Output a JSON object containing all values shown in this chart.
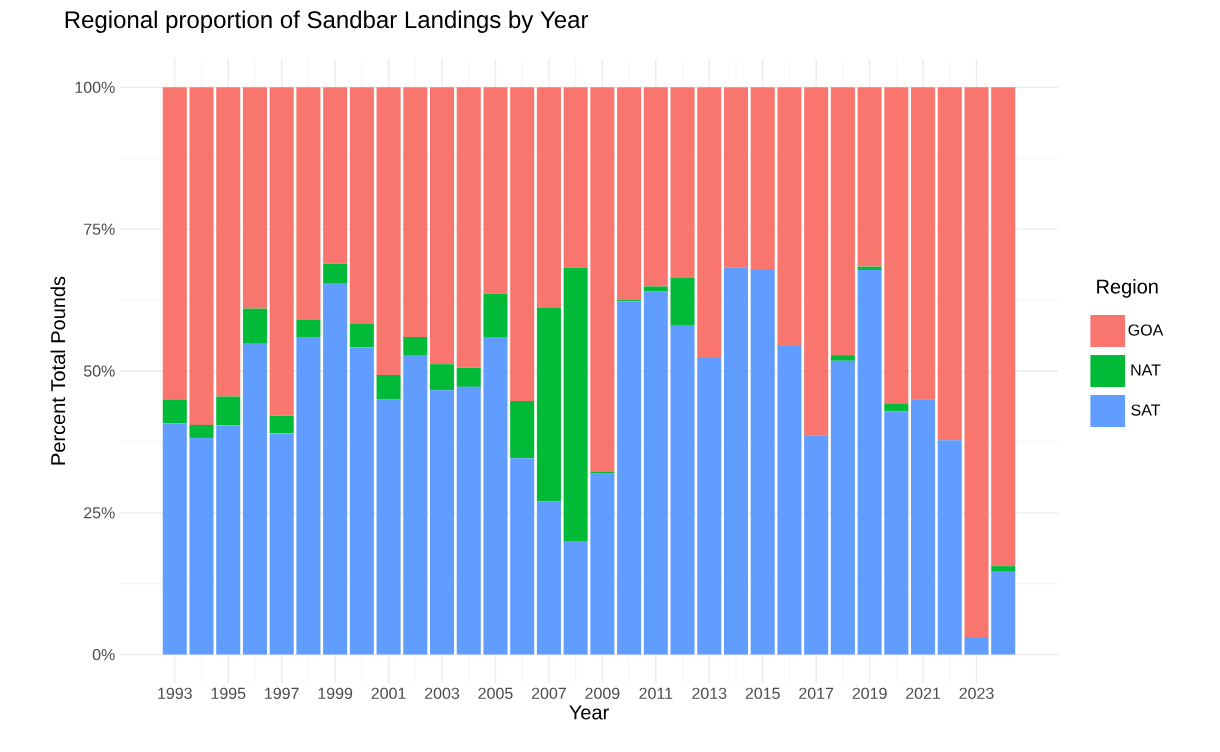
{
  "chart_data": {
    "type": "bar",
    "stacked": true,
    "title": "Regional proportion of Sandbar Landings by Year",
    "xlabel": "Year",
    "ylabel": "Percent Total Pounds",
    "legend_title": "Region",
    "legend": "right",
    "grid": true,
    "x": [
      1993,
      1994,
      1995,
      1996,
      1997,
      1998,
      1999,
      2000,
      2001,
      2002,
      2003,
      2004,
      2005,
      2006,
      2007,
      2008,
      2009,
      2010,
      2011,
      2012,
      2013,
      2014,
      2015,
      2016,
      2017,
      2018,
      2019,
      2020,
      2021,
      2022,
      2023,
      2024
    ],
    "xlim": [
      1990.95,
      2026.05
    ],
    "xticks": [
      1993,
      1995,
      1997,
      1999,
      2001,
      2003,
      2005,
      2007,
      2009,
      2011,
      2013,
      2015,
      2017,
      2019,
      2021,
      2023
    ],
    "ylim": [
      -5,
      105
    ],
    "yticks": [
      {
        "value": 0,
        "label": "0%"
      },
      {
        "value": 25,
        "label": "25%"
      },
      {
        "value": 50,
        "label": "50%"
      },
      {
        "value": 75,
        "label": "75%"
      },
      {
        "value": 100,
        "label": "100%"
      }
    ],
    "series": [
      {
        "name": "SAT",
        "color": "#619cff",
        "values": [
          40.8,
          38.2,
          40.4,
          54.8,
          39.0,
          56.0,
          65.5,
          54.2,
          45.0,
          52.8,
          46.6,
          47.2,
          56.0,
          34.6,
          27.0,
          19.9,
          31.9,
          62.3,
          64.0,
          58.1,
          52.3,
          68.3,
          67.8,
          54.4,
          38.6,
          51.8,
          67.8,
          42.9,
          44.9,
          37.8,
          3.1,
          14.6
        ]
      },
      {
        "name": "NAT",
        "color": "#00ba38",
        "values": [
          4.1,
          2.3,
          5.1,
          6.2,
          3.1,
          3.0,
          3.4,
          4.2,
          4.3,
          3.2,
          4.6,
          3.4,
          7.6,
          10.1,
          34.1,
          48.3,
          0.3,
          0.2,
          0.9,
          8.3,
          0,
          0,
          0.1,
          0.1,
          0.1,
          1.0,
          0.6,
          1.4,
          0.1,
          0,
          0,
          1.0
        ]
      },
      {
        "name": "GOA",
        "color": "#f8766d",
        "values": [
          55.1,
          59.5,
          54.5,
          39.0,
          57.9,
          41.0,
          31.1,
          41.6,
          50.7,
          44.0,
          48.8,
          49.4,
          36.4,
          55.3,
          38.9,
          31.8,
          67.8,
          37.5,
          35.1,
          33.6,
          47.7,
          31.7,
          32.1,
          45.5,
          61.3,
          47.2,
          31.6,
          55.7,
          55.0,
          62.2,
          96.9,
          84.4
        ]
      }
    ]
  }
}
